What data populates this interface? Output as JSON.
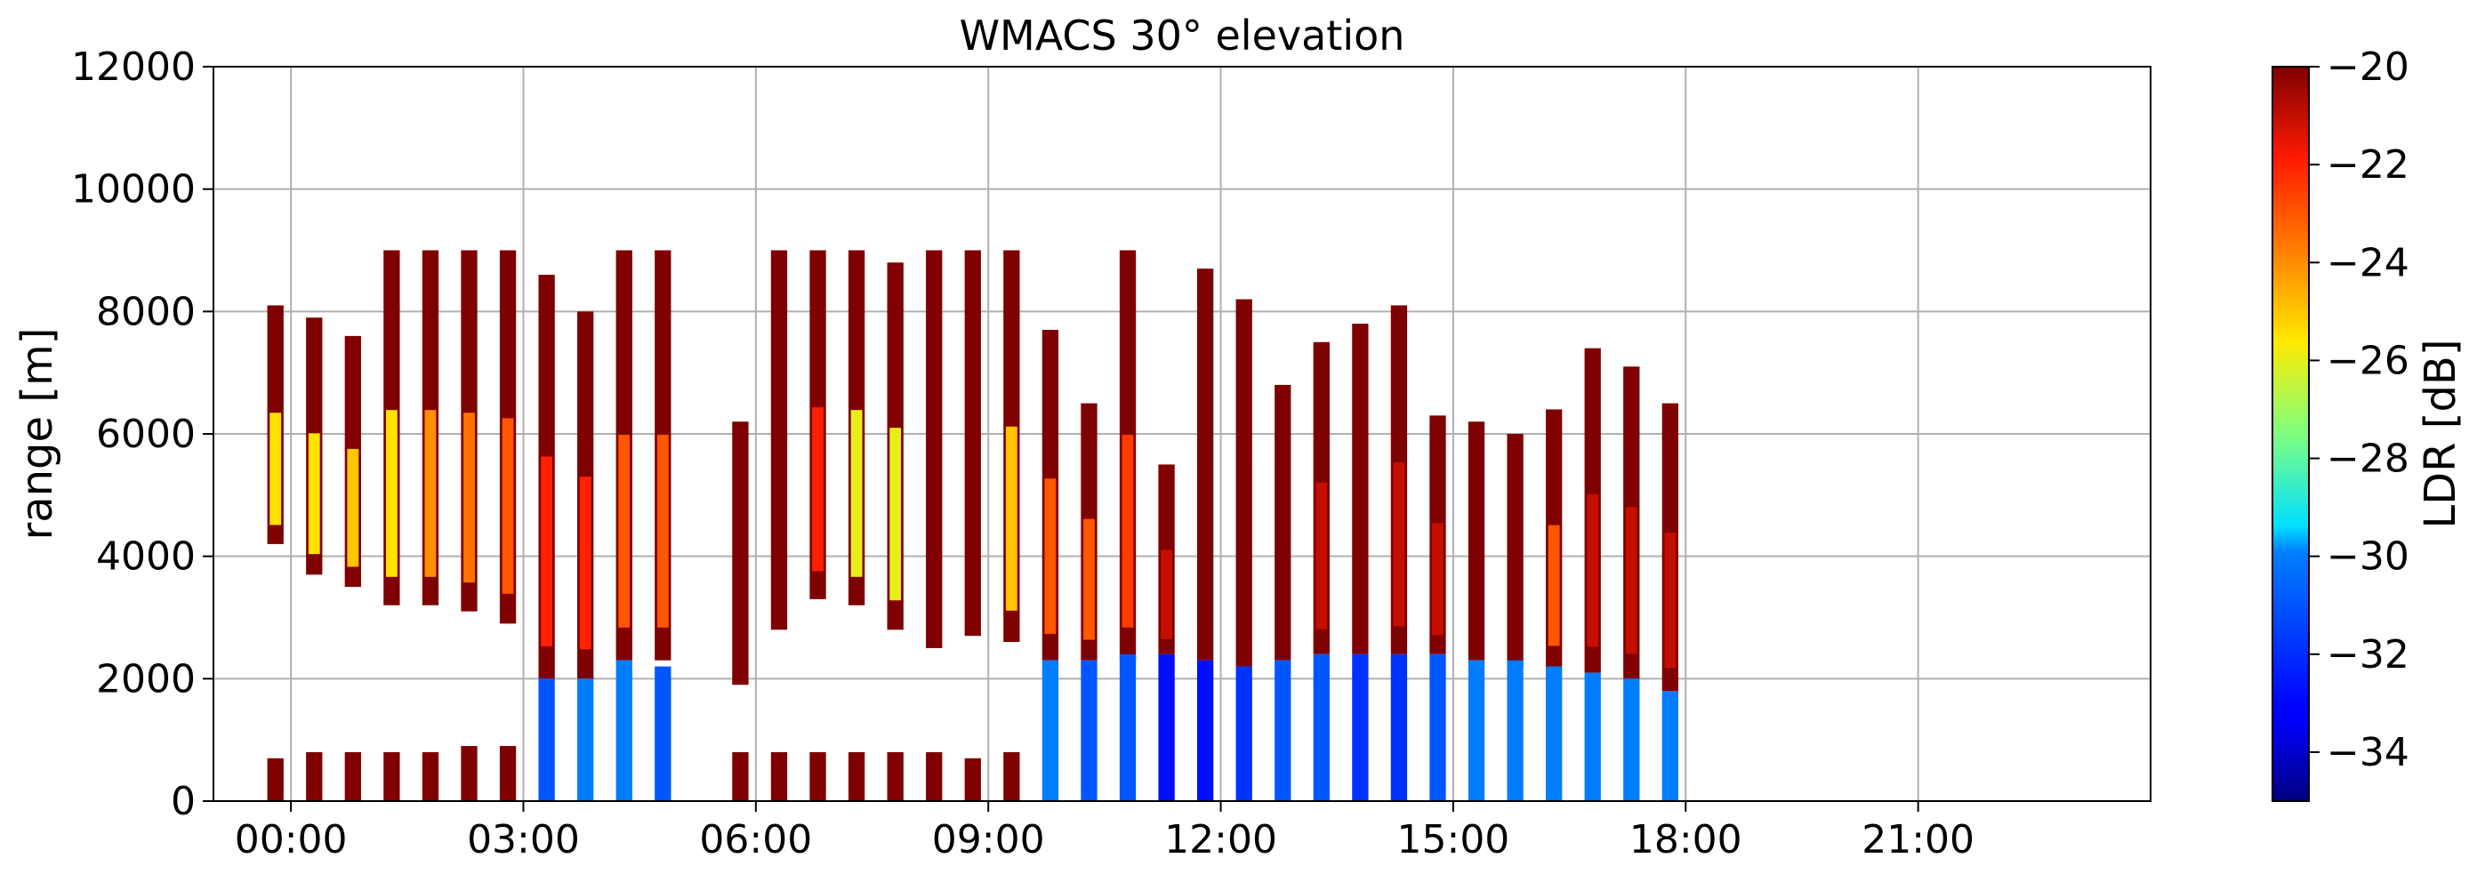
{
  "chart_data": {
    "type": "heatmap",
    "title": "WMACS 30° elevation",
    "ylabel": "range [m]",
    "xlabel": "",
    "x_range_hours": [
      -1,
      24
    ],
    "ylim": [
      0,
      12000
    ],
    "y_ticks": [
      0,
      2000,
      4000,
      6000,
      8000,
      10000,
      12000
    ],
    "x_ticks": [
      "00:00",
      "03:00",
      "06:00",
      "09:00",
      "12:00",
      "15:00",
      "18:00",
      "21:00"
    ],
    "x_tick_hours": [
      0,
      3,
      6,
      9,
      12,
      15,
      18,
      21
    ],
    "grid": true,
    "colorbar": {
      "label": "LDR [dB]",
      "range": [
        -35,
        -20
      ],
      "ticks": [
        -20,
        -22,
        -24,
        -26,
        -28,
        -30,
        -32,
        -34
      ],
      "tick_labels": [
        "−20",
        "−22",
        "−24",
        "−26",
        "−28",
        "−30",
        "−32",
        "−34"
      ],
      "colormap": "jet"
    },
    "scans": [
      {
        "t": -0.2,
        "top": 8100,
        "bottom": 4200,
        "core": -25.5,
        "low_top": 700,
        "low_ldr": -20
      },
      {
        "t": 0.3,
        "top": 7900,
        "bottom": 3700,
        "core": -25.5,
        "low_top": 800,
        "low_ldr": -20
      },
      {
        "t": 0.8,
        "top": 7600,
        "bottom": 3500,
        "core": -25,
        "low_top": 800,
        "low_ldr": -20
      },
      {
        "t": 1.3,
        "top": 9000,
        "bottom": 3200,
        "core": -25.5,
        "low_top": 800,
        "low_ldr": -20
      },
      {
        "t": 1.8,
        "top": 9000,
        "bottom": 3200,
        "core": -24,
        "low_top": 800,
        "low_ldr": -20
      },
      {
        "t": 2.3,
        "top": 9000,
        "bottom": 3100,
        "core": -23.5,
        "low_top": 900,
        "low_ldr": -20
      },
      {
        "t": 2.8,
        "top": 9000,
        "bottom": 2900,
        "core": -23,
        "low_top": 900,
        "low_ldr": -20
      },
      {
        "t": 3.3,
        "top": 8600,
        "bottom": 2000,
        "core": -22,
        "low_top": 2000,
        "low_ldr": -31
      },
      {
        "t": 3.8,
        "top": 8000,
        "bottom": 2000,
        "core": -22,
        "low_top": 2000,
        "low_ldr": -30
      },
      {
        "t": 4.3,
        "top": 9000,
        "bottom": 2300,
        "core": -23,
        "low_top": 2300,
        "low_ldr": -30
      },
      {
        "t": 4.8,
        "top": 9000,
        "bottom": 2300,
        "core": -23,
        "low_top": 2200,
        "low_ldr": -31
      },
      {
        "t": 5.8,
        "top": 6200,
        "bottom": 1900,
        "core": -20,
        "low_top": 800,
        "low_ldr": -20
      },
      {
        "t": 6.3,
        "top": 9000,
        "bottom": 2800,
        "core": -20,
        "low_top": 800,
        "low_ldr": -20
      },
      {
        "t": 6.8,
        "top": 9000,
        "bottom": 3300,
        "core": -22,
        "low_top": 800,
        "low_ldr": -20
      },
      {
        "t": 7.3,
        "top": 9000,
        "bottom": 3200,
        "core": -26,
        "low_top": 800,
        "low_ldr": -20
      },
      {
        "t": 7.8,
        "top": 8800,
        "bottom": 2800,
        "core": -26,
        "low_top": 800,
        "low_ldr": -20
      },
      {
        "t": 8.3,
        "top": 9000,
        "bottom": 2500,
        "core": -20,
        "low_top": 800,
        "low_ldr": -20
      },
      {
        "t": 8.8,
        "top": 9000,
        "bottom": 2700,
        "core": -20,
        "low_top": 700,
        "low_ldr": -20
      },
      {
        "t": 9.3,
        "top": 9000,
        "bottom": 2600,
        "core": -25,
        "low_top": 800,
        "low_ldr": -20
      },
      {
        "t": 9.8,
        "top": 7700,
        "bottom": 2300,
        "core": -23,
        "low_top": 2300,
        "low_ldr": -30
      },
      {
        "t": 10.3,
        "top": 6500,
        "bottom": 2300,
        "core": -23,
        "low_top": 2300,
        "low_ldr": -31
      },
      {
        "t": 10.8,
        "top": 9000,
        "bottom": 2300,
        "core": -22.5,
        "low_top": 2400,
        "low_ldr": -31
      },
      {
        "t": 11.3,
        "top": 5500,
        "bottom": 2400,
        "core": -21,
        "low_top": 2400,
        "low_ldr": -33
      },
      {
        "t": 11.8,
        "top": 8700,
        "bottom": 2300,
        "core": -20,
        "low_top": 2300,
        "low_ldr": -33
      },
      {
        "t": 12.3,
        "top": 8200,
        "bottom": 2200,
        "core": -20,
        "low_top": 2200,
        "low_ldr": -32
      },
      {
        "t": 12.8,
        "top": 6800,
        "bottom": 2300,
        "core": -20,
        "low_top": 2300,
        "low_ldr": -31
      },
      {
        "t": 13.3,
        "top": 7500,
        "bottom": 2400,
        "core": -21,
        "low_top": 2400,
        "low_ldr": -31
      },
      {
        "t": 13.8,
        "top": 7800,
        "bottom": 2400,
        "core": -20,
        "low_top": 2400,
        "low_ldr": -32
      },
      {
        "t": 14.3,
        "top": 8100,
        "bottom": 2400,
        "core": -21,
        "low_top": 2400,
        "low_ldr": -32
      },
      {
        "t": 14.8,
        "top": 6300,
        "bottom": 2400,
        "core": -21,
        "low_top": 2400,
        "low_ldr": -31
      },
      {
        "t": 15.3,
        "top": 6200,
        "bottom": 2300,
        "core": -20,
        "low_top": 2300,
        "low_ldr": -30
      },
      {
        "t": 15.8,
        "top": 6000,
        "bottom": 2200,
        "core": -20,
        "low_top": 2300,
        "low_ldr": -30
      },
      {
        "t": 16.3,
        "top": 6400,
        "bottom": 2200,
        "core": -23,
        "low_top": 2200,
        "low_ldr": -30
      },
      {
        "t": 16.8,
        "top": 7400,
        "bottom": 2100,
        "core": -21,
        "low_top": 2100,
        "low_ldr": -30
      },
      {
        "t": 17.3,
        "top": 7100,
        "bottom": 2000,
        "core": -21,
        "low_top": 2000,
        "low_ldr": -30
      },
      {
        "t": 17.8,
        "top": 6500,
        "bottom": 1800,
        "core": -21,
        "low_top": 1800,
        "low_ldr": -30
      }
    ]
  }
}
